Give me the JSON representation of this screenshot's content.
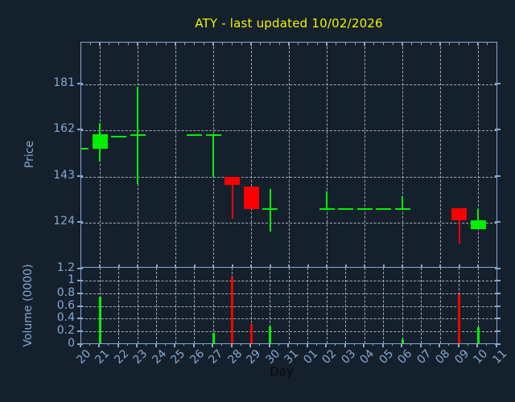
{
  "figure": {
    "ticker": "ATY",
    "last_updated": "10/02/2026"
  },
  "colors": {
    "background": "#15202d",
    "axis_spine": "#85a8cf",
    "tick_label": "#85a8cf",
    "title": "#f2f200",
    "grid": "#c7cdd5",
    "candle_up": "#00f000",
    "candle_down": "#fb0000",
    "xlabel_text": "#0a0a0a"
  },
  "chart_data": [
    {
      "type": "candlestick",
      "title": "ATY - last updated 10/02/2026",
      "xlabel": "Day",
      "ylabel": "Price",
      "ylim": [
        105,
        198
      ],
      "yticks": [
        "124",
        "143",
        "162",
        "181"
      ],
      "grid": "dashed, horizontal at yticks, vertical every 2 days",
      "x_categories": [
        "20",
        "21",
        "22",
        "23",
        "24",
        "25",
        "26",
        "27",
        "28",
        "29",
        "30",
        "31",
        "01",
        "02",
        "03",
        "04",
        "05",
        "06",
        "07",
        "08",
        "09",
        "10",
        "11"
      ],
      "candles": [
        {
          "day": "20",
          "open": 154.5,
          "high": 154.5,
          "low": 154.5,
          "close": 154.5,
          "direction": "up"
        },
        {
          "day": "21",
          "open": 154.5,
          "high": 165,
          "low": 149,
          "close": 160.5,
          "direction": "up"
        },
        {
          "day": "22",
          "open": 159.5,
          "high": 159.5,
          "low": 159.5,
          "close": 159.5,
          "direction": "up"
        },
        {
          "day": "23",
          "open": 160,
          "high": 180,
          "low": 140,
          "close": 160,
          "direction": "up"
        },
        {
          "day": "26",
          "open": 160,
          "high": 160,
          "low": 160,
          "close": 160,
          "direction": "up"
        },
        {
          "day": "27",
          "open": 160,
          "high": 160,
          "low": 143,
          "close": 160,
          "direction": "up"
        },
        {
          "day": "28",
          "open": 143,
          "high": 143,
          "low": 125.5,
          "close": 139.5,
          "direction": "down"
        },
        {
          "day": "29",
          "open": 139,
          "high": 139,
          "low": 129.5,
          "close": 129.5,
          "direction": "down"
        },
        {
          "day": "30",
          "open": 129.5,
          "high": 138,
          "low": 120.5,
          "close": 129.5,
          "direction": "up"
        },
        {
          "day": "02",
          "open": 129.5,
          "high": 137,
          "low": 129.5,
          "close": 129.5,
          "direction": "up"
        },
        {
          "day": "03",
          "open": 129.5,
          "high": 129.5,
          "low": 129.5,
          "close": 129.5,
          "direction": "up"
        },
        {
          "day": "04",
          "open": 129.5,
          "high": 129.5,
          "low": 129.5,
          "close": 129.5,
          "direction": "up"
        },
        {
          "day": "05",
          "open": 129.5,
          "high": 129.5,
          "low": 129.5,
          "close": 129.5,
          "direction": "up"
        },
        {
          "day": "06",
          "open": 129.5,
          "high": 135,
          "low": 129.5,
          "close": 129.5,
          "direction": "up"
        },
        {
          "day": "09",
          "open": 130,
          "high": 130,
          "low": 115.5,
          "close": 125,
          "direction": "down"
        },
        {
          "day": "10",
          "open": 121.5,
          "high": 129.5,
          "low": 121.5,
          "close": 125,
          "direction": "up"
        }
      ]
    },
    {
      "type": "bar",
      "ylabel": "Volume (0000)",
      "ylim": [
        0,
        1.2
      ],
      "yticks": [
        "0",
        "0.2",
        "0.4",
        "0.6",
        "0.8",
        "1",
        "1.2"
      ],
      "grid": "dashed, horizontal at yticks, vertical every day",
      "bars": [
        {
          "day": "21",
          "value": 0.75,
          "direction": "up"
        },
        {
          "day": "27",
          "value": 0.17,
          "direction": "up"
        },
        {
          "day": "28",
          "value": 1.06,
          "direction": "down"
        },
        {
          "day": "29",
          "value": 0.32,
          "direction": "down"
        },
        {
          "day": "30",
          "value": 0.28,
          "direction": "up"
        },
        {
          "day": "06",
          "value": 0.07,
          "direction": "up"
        },
        {
          "day": "09",
          "value": 0.78,
          "direction": "down"
        },
        {
          "day": "10",
          "value": 0.27,
          "direction": "up"
        }
      ]
    }
  ]
}
